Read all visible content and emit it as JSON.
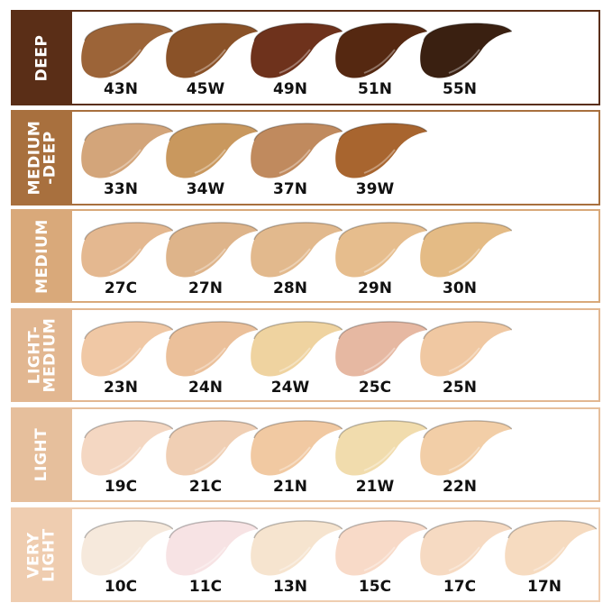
{
  "rows": [
    {
      "label": "DEEP",
      "color": "#5a2e17",
      "shades": [
        {
          "name": "43N",
          "color": "#9c6438"
        },
        {
          "name": "45W",
          "color": "#8a5228"
        },
        {
          "name": "49N",
          "color": "#6e321c"
        },
        {
          "name": "51N",
          "color": "#552811"
        },
        {
          "name": "55N",
          "color": "#3a2011"
        }
      ]
    },
    {
      "label": "MEDIUM\n-DEEP",
      "color": "#a8703e",
      "shades": [
        {
          "name": "33N",
          "color": "#d3a57a"
        },
        {
          "name": "34W",
          "color": "#c9985e"
        },
        {
          "name": "37N",
          "color": "#c08a5e"
        },
        {
          "name": "39W",
          "color": "#a8652f"
        }
      ]
    },
    {
      "label": "MEDIUM",
      "color": "#d9a97a",
      "shades": [
        {
          "name": "27C",
          "color": "#e4b890"
        },
        {
          "name": "27N",
          "color": "#deb48a"
        },
        {
          "name": "28N",
          "color": "#e2b98d"
        },
        {
          "name": "29N",
          "color": "#e6bd8d"
        },
        {
          "name": "30N",
          "color": "#e4bb85"
        }
      ]
    },
    {
      "label": "LIGHT-\nMEDIUM",
      "color": "#e2b791",
      "shades": [
        {
          "name": "23N",
          "color": "#f0c8a5"
        },
        {
          "name": "24N",
          "color": "#ebc09a"
        },
        {
          "name": "24W",
          "color": "#efd3a0"
        },
        {
          "name": "25C",
          "color": "#e6b8a2"
        },
        {
          "name": "25N",
          "color": "#f0c8a2"
        }
      ]
    },
    {
      "label": "LIGHT",
      "color": "#e6bf9c",
      "shades": [
        {
          "name": "19C",
          "color": "#f4d7c2"
        },
        {
          "name": "21C",
          "color": "#f0cfb4"
        },
        {
          "name": "21N",
          "color": "#f1c9a2"
        },
        {
          "name": "21W",
          "color": "#f1dcad"
        },
        {
          "name": "22N",
          "color": "#f2cea7"
        }
      ]
    },
    {
      "label": "VERY\nLIGHT",
      "color": "#efcdb0",
      "shades": [
        {
          "name": "10C",
          "color": "#f6e9dc"
        },
        {
          "name": "11C",
          "color": "#f7e3e4"
        },
        {
          "name": "13N",
          "color": "#f6e4cf"
        },
        {
          "name": "15C",
          "color": "#f8dac8"
        },
        {
          "name": "17C",
          "color": "#f6dac2"
        },
        {
          "name": "17N",
          "color": "#f6dbc0"
        }
      ]
    }
  ]
}
